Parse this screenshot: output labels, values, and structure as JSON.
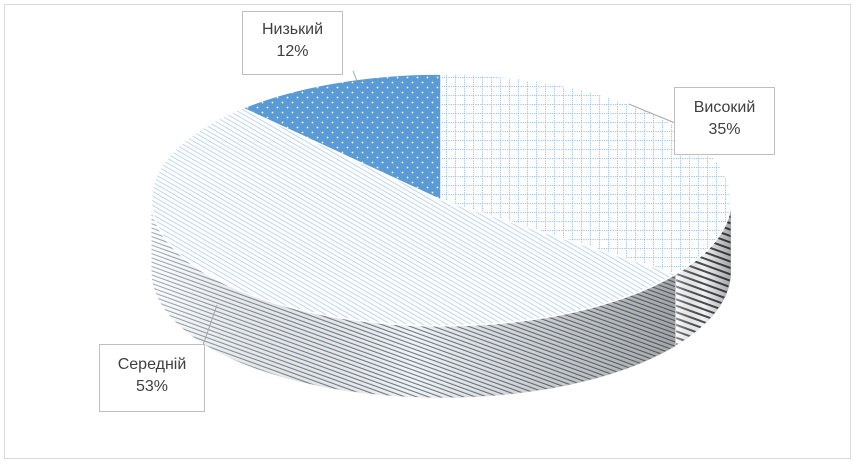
{
  "chart_data": {
    "type": "pie",
    "style": "3d",
    "title": "",
    "slices": [
      {
        "label": "Високий",
        "value": 35,
        "pct_label": "35%",
        "pattern": "grid-dots",
        "color": "#5b9bd5"
      },
      {
        "label": "Середній",
        "value": 53,
        "pct_label": "53%",
        "pattern": "diagonal-hatch",
        "color": "#5b9bd5"
      },
      {
        "label": "Низький",
        "value": 12,
        "pct_label": "12%",
        "pattern": "solid-dots",
        "color": "#5b9bd5"
      }
    ],
    "legend": "none",
    "data_labels": "callout"
  }
}
